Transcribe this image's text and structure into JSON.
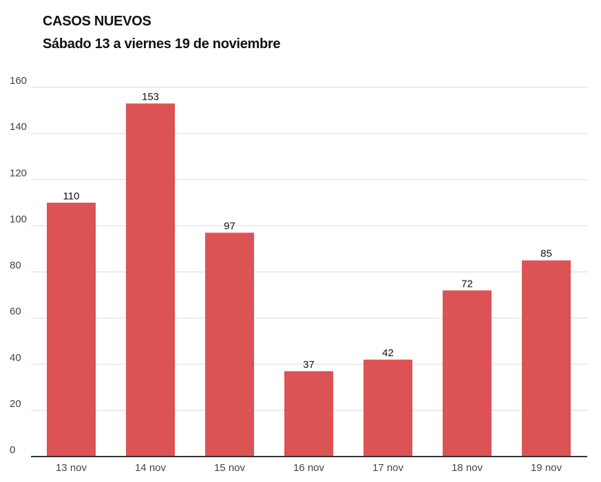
{
  "chart_data": {
    "type": "bar",
    "title": "CASOS NUEVOS",
    "subtitle": "Sábado 13 a viernes 19 de noviembre",
    "categories": [
      "13 nov",
      "14 nov",
      "15 nov",
      "16 nov",
      "17 nov",
      "18 nov",
      "19 nov"
    ],
    "values": [
      110,
      153,
      97,
      37,
      42,
      72,
      85
    ],
    "yticks": [
      0,
      20,
      40,
      60,
      80,
      100,
      120,
      140,
      160
    ],
    "ylim": [
      0,
      160
    ],
    "xlabel": "",
    "ylabel": "",
    "grid": true,
    "data_labels": true,
    "colors": {
      "bar": "#dc5355",
      "grid": "#d9d9d9",
      "baseline": "#333333"
    }
  }
}
